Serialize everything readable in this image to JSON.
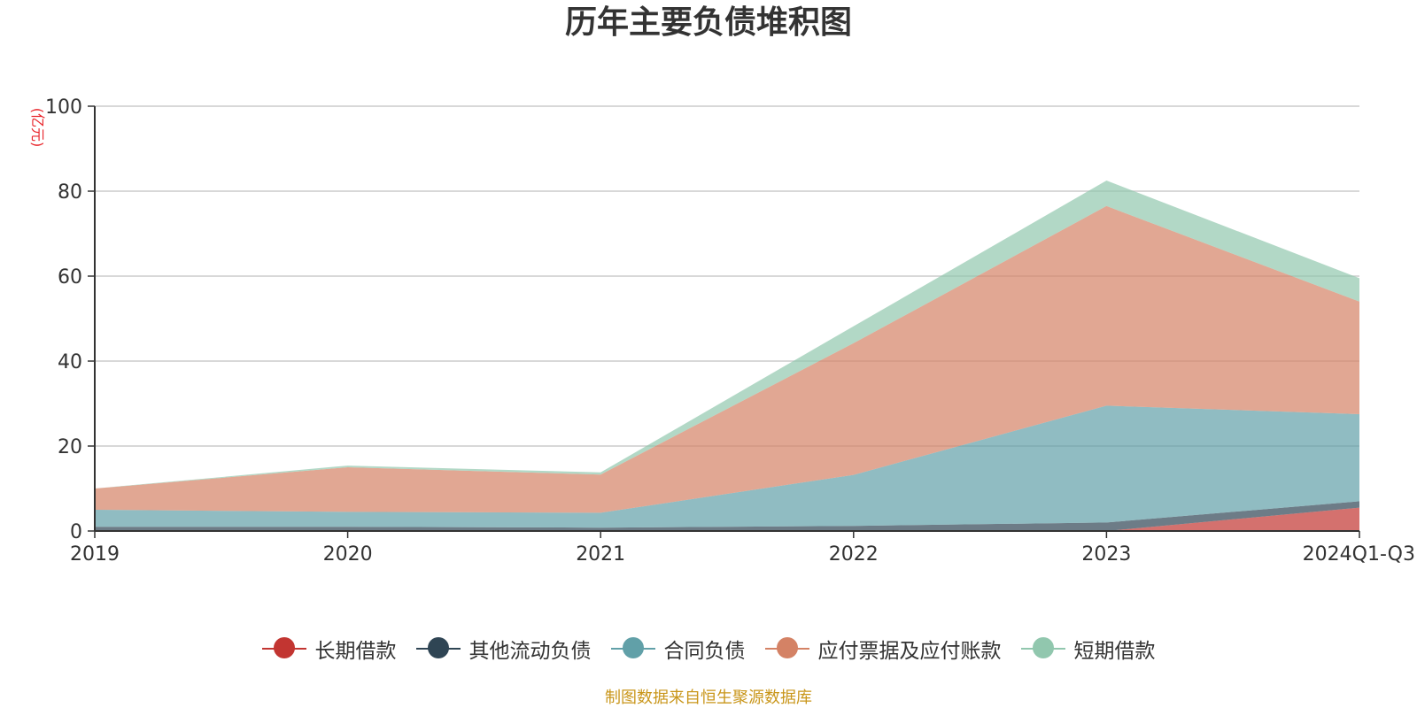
{
  "chart_data": {
    "type": "area",
    "stacked": true,
    "title": "历年主要负债堆积图",
    "unit_label": "(亿元)",
    "categories": [
      "2019",
      "2020",
      "2021",
      "2022",
      "2023",
      "2024Q1-Q3"
    ],
    "ylim": [
      0,
      100
    ],
    "yticks": [
      0,
      20,
      40,
      60,
      80,
      100
    ],
    "grid": true,
    "legend_position": "bottom",
    "series": [
      {
        "name": "长期借款",
        "color": "#c23531",
        "values": [
          0,
          0,
          0,
          0,
          0,
          5.5
        ]
      },
      {
        "name": "其他流动负债",
        "color": "#2f4554",
        "values": [
          1.0,
          1.0,
          0.8,
          1.2,
          2.0,
          1.5
        ]
      },
      {
        "name": "合同负债",
        "color": "#61a0a8",
        "values": [
          4.0,
          3.5,
          3.5,
          12.0,
          27.5,
          20.5
        ]
      },
      {
        "name": "应付票据及应付账款",
        "color": "#d48265",
        "values": [
          5.0,
          10.5,
          9.0,
          31.0,
          47.0,
          26.5
        ]
      },
      {
        "name": "短期借款",
        "color": "#91c7ae",
        "values": [
          0,
          0.4,
          0.5,
          4.0,
          6.0,
          5.5
        ]
      }
    ]
  },
  "footer": {
    "source": "制图数据来自恒生聚源数据库"
  }
}
